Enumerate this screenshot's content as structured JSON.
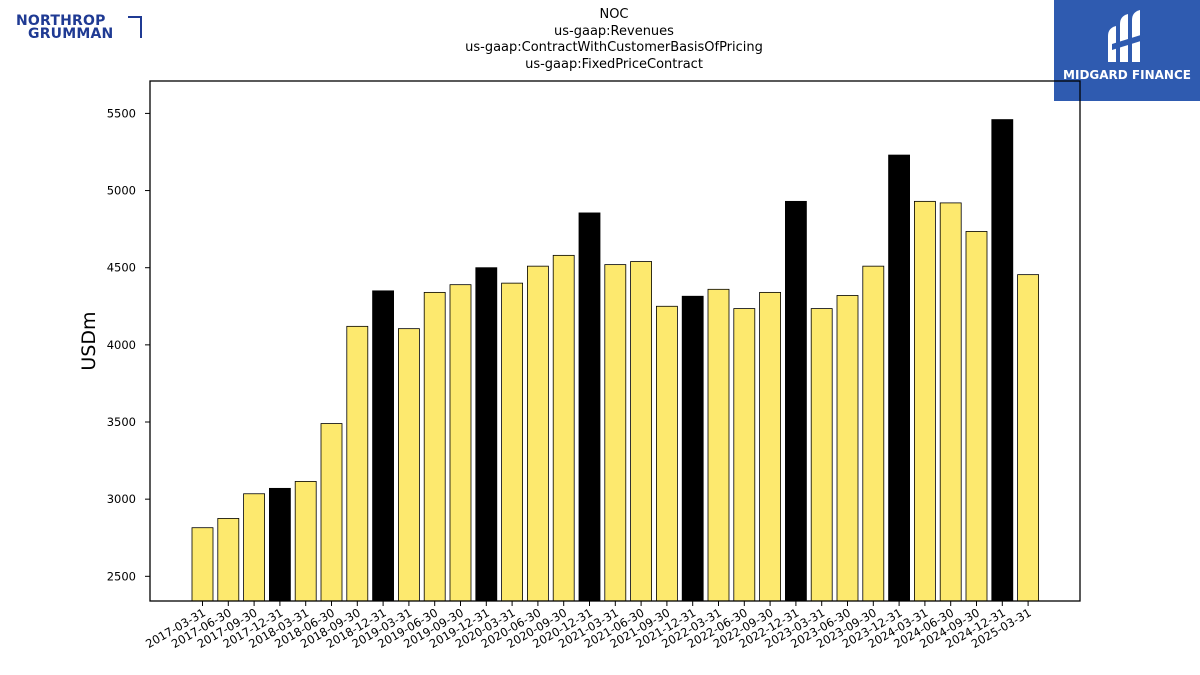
{
  "logos": {
    "company_line1": "NORTHROP",
    "company_line2": "GRUMMAN",
    "brand_text": "MIDGARD FINANCE",
    "brand_color": "#2f5bb0",
    "company_color": "#1f3a93"
  },
  "chart_data": {
    "type": "bar",
    "title": [
      "NOC",
      "us-gaap:Revenues",
      "us-gaap:ContractWithCustomerBasisOfPricing",
      "us-gaap:FixedPriceContract"
    ],
    "xlabel": "",
    "ylabel": "USDm",
    "ylim": [
      2340,
      5710
    ],
    "yticks": [
      2500,
      3000,
      3500,
      4000,
      4500,
      5000,
      5500
    ],
    "grid": false,
    "legend": "none",
    "colors": {
      "quarter": "#fde96e",
      "year_end": "#000000",
      "edge": "#000000"
    },
    "categories": [
      "2017-03-31",
      "2017-06-30",
      "2017-09-30",
      "2017-12-31",
      "2018-03-31",
      "2018-06-30",
      "2018-09-30",
      "2018-12-31",
      "2019-03-31",
      "2019-06-30",
      "2019-09-30",
      "2019-12-31",
      "2020-03-31",
      "2020-06-30",
      "2020-09-30",
      "2020-12-31",
      "2021-03-31",
      "2021-06-30",
      "2021-09-30",
      "2021-12-31",
      "2022-03-31",
      "2022-06-30",
      "2022-09-30",
      "2022-12-31",
      "2023-03-31",
      "2023-06-30",
      "2023-09-30",
      "2023-12-31",
      "2024-03-31",
      "2024-06-30",
      "2024-09-30",
      "2024-12-31",
      "2025-03-31"
    ],
    "values": [
      2815,
      2875,
      3035,
      3070,
      3115,
      3490,
      4120,
      4350,
      4105,
      4340,
      4390,
      4500,
      4400,
      4510,
      4580,
      4855,
      4520,
      4540,
      4250,
      4315,
      4360,
      4235,
      4340,
      4930,
      4235,
      4320,
      4510,
      5230,
      4930,
      4920,
      4735,
      5460,
      4455
    ]
  }
}
